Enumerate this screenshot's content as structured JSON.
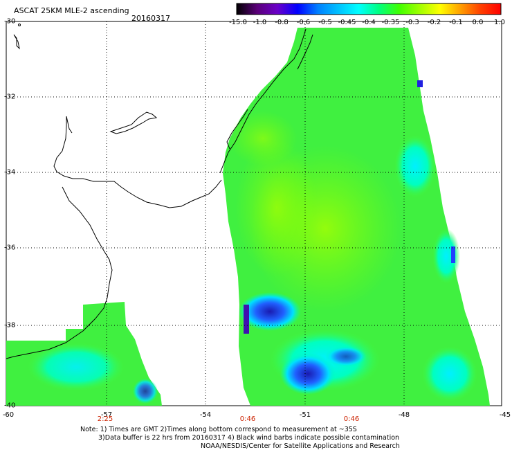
{
  "header": {
    "title": "ASCAT 25KM MLE-2 ascending",
    "date": "20160317"
  },
  "colorbar": {
    "labels": [
      "-15.0",
      "-1.0",
      "-0.8",
      "-0.6",
      "-0.5",
      "-0.45",
      "-0.4",
      "-0.35",
      "-0.3",
      "-0.2",
      "-0.1",
      "0.0",
      "1.0"
    ],
    "colors": [
      "#000000",
      "#5a0078",
      "#6a00c8",
      "#0000ff",
      "#0080ff",
      "#00c0ff",
      "#00ffff",
      "#00ff80",
      "#40ff00",
      "#a0ff00",
      "#ffff00",
      "#ffa000",
      "#ff4000",
      "#ff0000"
    ]
  },
  "map": {
    "lat_labels": [
      "-30",
      "-32",
      "-34",
      "-36",
      "-38",
      "-40"
    ],
    "lon_labels": [
      "-60",
      "-57",
      "-54",
      "-51",
      "-48",
      "-45"
    ],
    "time_labels": [
      "2:25",
      "0:46",
      "0:46"
    ]
  },
  "notes": {
    "line1": "Note: 1) Times are GMT 2)Times along bottom correspond to measurement at ~35S",
    "line2": "3)Data buffer is 22 hrs from 20160317 4) Black wind barbs indicate possible contamination",
    "line3": "NOAA/NESDIS/Center for Satellite Applications and Research"
  }
}
